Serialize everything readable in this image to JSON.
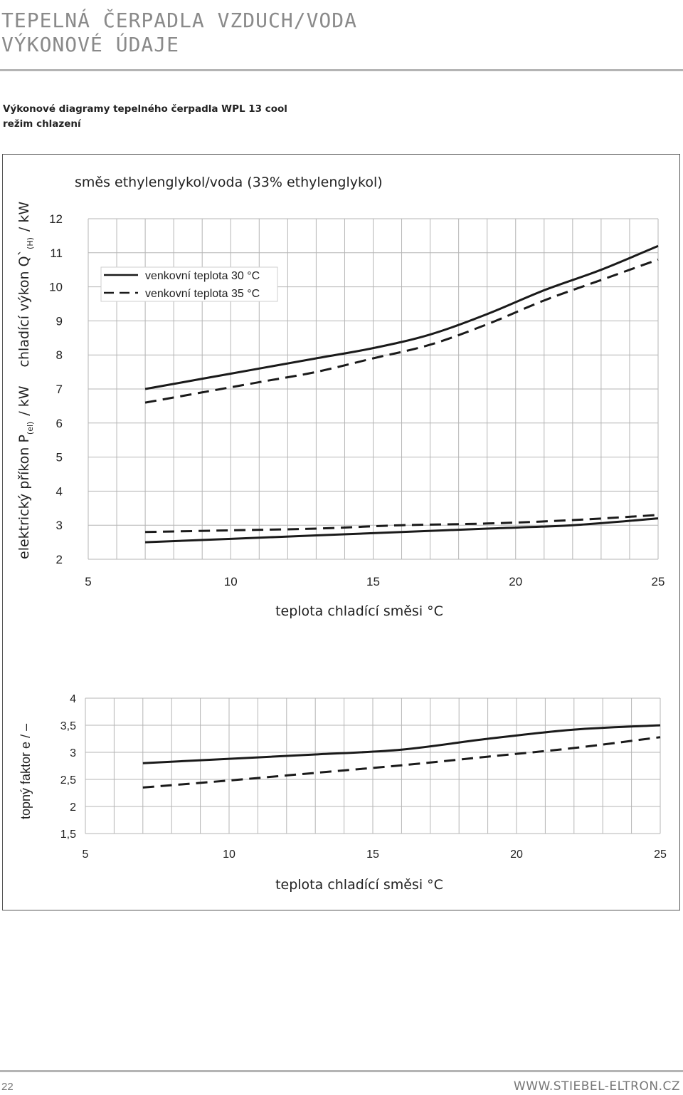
{
  "header": {
    "title_line1": "TEPELNÁ ČERPADLA VZDUCH/VODA",
    "title_line2": "VÝKONOVÉ ÚDAJE"
  },
  "intro": {
    "line1": "Výkonové diagramy tepelného čerpadla WPL 13 cool",
    "line2": "režim chlazení"
  },
  "chart_data": [
    {
      "type": "line",
      "title": "směs ethylenglykol/voda (33% ethylenglykol)",
      "xlabel": "teplota chladící směsi °C",
      "ylabel_left_part": "elektrický příkon P",
      "ylabel_left_sub": "(el)",
      "ylabel_left_unit": "/ kW",
      "ylabel_right_part": "chladící výkon Q`",
      "ylabel_right_sub": "(H)",
      "ylabel_right_unit": "/ kW",
      "xlim": [
        5,
        25
      ],
      "ylim": [
        2,
        12
      ],
      "xticks": [
        "5",
        "10",
        "15",
        "20",
        "25"
      ],
      "yticks": [
        "2",
        "3",
        "4",
        "5",
        "6",
        "7",
        "8",
        "9",
        "10",
        "11",
        "12"
      ],
      "grid": true,
      "legend_position": "top-left",
      "legend": [
        "venkovní teplota 30 °C",
        "venkovní teplota 35 °C"
      ],
      "series": [
        {
          "legend_index": 0,
          "style": "solid",
          "x": [
            7,
            9,
            11,
            13,
            15,
            17,
            19,
            21,
            23,
            25
          ],
          "y": [
            7.0,
            7.3,
            7.6,
            7.9,
            8.2,
            8.6,
            9.2,
            9.9,
            10.5,
            11.2
          ]
        },
        {
          "legend_index": 1,
          "style": "dashed",
          "x": [
            7,
            9,
            11,
            13,
            15,
            17,
            19,
            21,
            23,
            25
          ],
          "y": [
            6.6,
            6.9,
            7.2,
            7.5,
            7.9,
            8.3,
            8.9,
            9.6,
            10.2,
            10.8
          ]
        },
        {
          "legend_index": 0,
          "style": "solid",
          "x": [
            7,
            10,
            13,
            16,
            19,
            22,
            25
          ],
          "y": [
            2.5,
            2.6,
            2.7,
            2.8,
            2.9,
            3.0,
            3.2
          ]
        },
        {
          "legend_index": 1,
          "style": "dashed",
          "x": [
            7,
            10,
            13,
            16,
            19,
            22,
            25
          ],
          "y": [
            2.8,
            2.85,
            2.9,
            3.0,
            3.05,
            3.15,
            3.3
          ]
        }
      ]
    },
    {
      "type": "line",
      "xlabel": "teplota chladící směsi °C",
      "ylabel": "topný faktor e / –",
      "xlim": [
        5,
        25
      ],
      "ylim": [
        1.5,
        4
      ],
      "xticks": [
        "5",
        "10",
        "15",
        "20",
        "25"
      ],
      "yticks": [
        "1,5",
        "2",
        "2,5",
        "3",
        "3,5",
        "4"
      ],
      "grid": true,
      "series": [
        {
          "style": "solid",
          "x": [
            7,
            10,
            13,
            16,
            19,
            22,
            25
          ],
          "y": [
            2.8,
            2.88,
            2.96,
            3.05,
            3.25,
            3.42,
            3.5
          ]
        },
        {
          "style": "dashed",
          "x": [
            7,
            10,
            13,
            16,
            19,
            22,
            25
          ],
          "y": [
            2.35,
            2.48,
            2.62,
            2.76,
            2.92,
            3.08,
            3.28
          ]
        }
      ]
    }
  ],
  "footer": {
    "page_number": "22",
    "url": "WWW.STIEBEL-ELTRON.CZ"
  }
}
